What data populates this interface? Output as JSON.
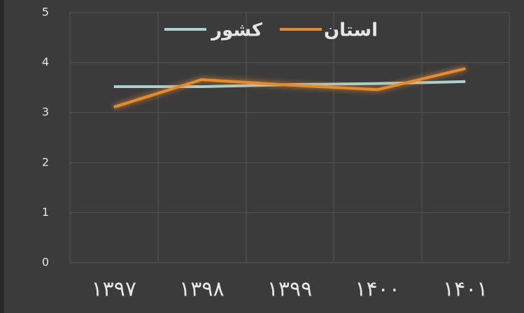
{
  "chart_data": {
    "type": "line",
    "categories": [
      "۱۳۹۷",
      "۱۳۹۸",
      "۱۳۹۹",
      "۱۴۰۰",
      "۱۴۰۱"
    ],
    "series": [
      {
        "name": "کشور",
        "color": "#a9d3cf",
        "values": [
          3.52,
          3.52,
          3.56,
          3.58,
          3.62
        ]
      },
      {
        "name": "استان",
        "color": "#e58a2e",
        "values": [
          3.11,
          3.66,
          3.55,
          3.46,
          3.88
        ]
      }
    ],
    "ylim": [
      0,
      5
    ],
    "yticks": [
      0,
      1,
      2,
      3,
      4,
      5
    ],
    "grid": true
  }
}
